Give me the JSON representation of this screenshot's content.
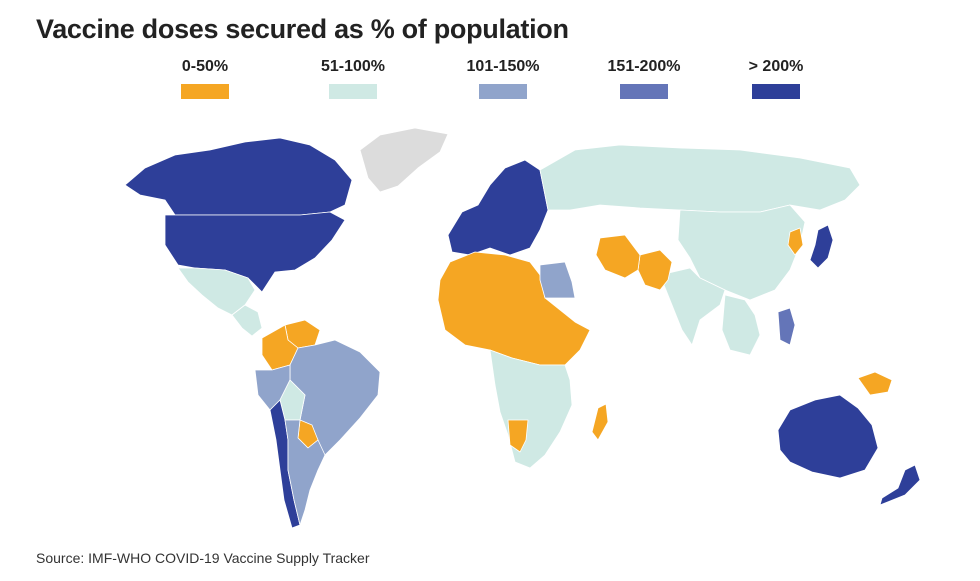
{
  "title": "Vaccine doses secured as % of population",
  "legend": [
    {
      "label": "0-50%",
      "color": "#f5a623"
    },
    {
      "label": "51-100%",
      "color": "#cfe9e4"
    },
    {
      "label": "101-150%",
      "color": "#90a4cb"
    },
    {
      "label": "151-200%",
      "color": "#6475b8"
    },
    {
      "label": "> 200%",
      "color": "#2e3f99"
    }
  ],
  "no_data_color": "#dcdcdc",
  "regions": [
    {
      "name": "Canada",
      "category": 4
    },
    {
      "name": "United States",
      "category": 4
    },
    {
      "name": "Greenland",
      "category": null
    },
    {
      "name": "Mexico",
      "category": 1
    },
    {
      "name": "Central America",
      "category": 1
    },
    {
      "name": "Venezuela",
      "category": 0
    },
    {
      "name": "Colombia",
      "category": 0
    },
    {
      "name": "Brazil",
      "category": 2
    },
    {
      "name": "Peru",
      "category": 2
    },
    {
      "name": "Bolivia",
      "category": 1
    },
    {
      "name": "Paraguay",
      "category": 0
    },
    {
      "name": "Chile",
      "category": 4
    },
    {
      "name": "Argentina",
      "category": 2
    },
    {
      "name": "Europe",
      "category": 4
    },
    {
      "name": "Russia",
      "category": 1
    },
    {
      "name": "China",
      "category": 1
    },
    {
      "name": "India",
      "category": 1
    },
    {
      "name": "Pakistan",
      "category": 0
    },
    {
      "name": "Iran",
      "category": 0
    },
    {
      "name": "North Africa and Sahel",
      "category": 0
    },
    {
      "name": "Egypt",
      "category": 2
    },
    {
      "name": "Sub-Saharan Africa",
      "category": 1
    },
    {
      "name": "Madagascar",
      "category": 0
    },
    {
      "name": "Namibia",
      "category": 0
    },
    {
      "name": "Japan",
      "category": 4
    },
    {
      "name": "Korea",
      "category": 0
    },
    {
      "name": "Southeast Asia",
      "category": 1
    },
    {
      "name": "Philippines",
      "category": 3
    },
    {
      "name": "Papua New Guinea",
      "category": 0
    },
    {
      "name": "Australia",
      "category": 4
    },
    {
      "name": "New Zealand",
      "category": 4
    }
  ],
  "source": "Source: IMF-WHO COVID-19 Vaccine Supply Tracker"
}
